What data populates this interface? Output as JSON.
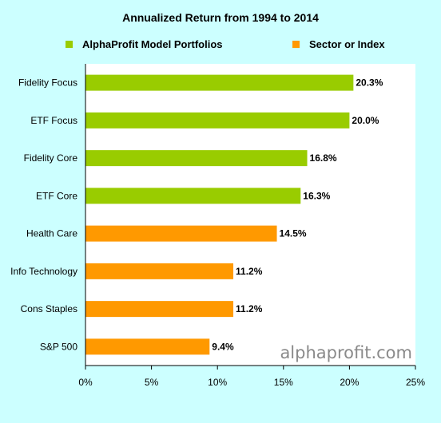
{
  "chart_data": {
    "type": "bar",
    "orientation": "horizontal",
    "title": "Annualized Return from 1994 to 2014",
    "categories": [
      "Fidelity Focus",
      "ETF Focus",
      "Fidelity Core",
      "ETF Core",
      "Health Care",
      "Info Technology",
      "Cons Staples",
      "S&P 500"
    ],
    "values": [
      20.3,
      20.0,
      16.8,
      16.3,
      14.5,
      11.2,
      11.2,
      9.4
    ],
    "value_labels": [
      "20.3%",
      "20.0%",
      "16.8%",
      "16.3%",
      "14.5%",
      "11.2%",
      "11.2%",
      "9.4%"
    ],
    "groups": [
      "AlphaProfit Model Portfolios",
      "AlphaProfit Model Portfolios",
      "AlphaProfit Model Portfolios",
      "AlphaProfit Model Portfolios",
      "Sector or Index",
      "Sector or Index",
      "Sector or Index",
      "Sector or Index"
    ],
    "legend": [
      {
        "name": "AlphaProfit Model Portfolios",
        "color": "#99cc00"
      },
      {
        "name": "Sector or Index",
        "color": "#ff9900"
      }
    ],
    "legend_position": "top",
    "xlim": [
      0,
      25
    ],
    "x_ticks": [
      0,
      5,
      10,
      15,
      20,
      25
    ],
    "x_tick_labels": [
      "0%",
      "5%",
      "10%",
      "15%",
      "20%",
      "25%"
    ],
    "xlabel": "",
    "ylabel": "",
    "grid": false,
    "plot_background": "#ffffff",
    "page_background": "#ccffff"
  },
  "watermark": "alphaprofit.com"
}
